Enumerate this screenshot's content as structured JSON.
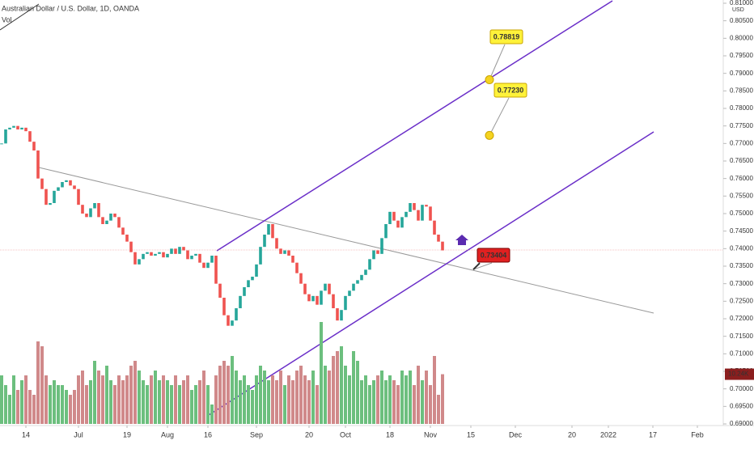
{
  "chart_data": {
    "type": "candlestick",
    "title": "Australian Dollar / U.S. Dollar, 1D, OANDA",
    "volume_title": "Vol",
    "currency": "USD",
    "xlim": [
      0,
      178
    ],
    "xticks": [
      {
        "value": 6,
        "label": "14"
      },
      {
        "value": 19,
        "label": "Jul"
      },
      {
        "value": 31,
        "label": "19"
      },
      {
        "value": 41,
        "label": "Aug"
      },
      {
        "value": 51,
        "label": "16"
      },
      {
        "value": 63,
        "label": "Sep"
      },
      {
        "value": 76,
        "label": "20"
      },
      {
        "value": 85,
        "label": "Oct"
      },
      {
        "value": 96,
        "label": "18"
      },
      {
        "value": 106,
        "label": "Nov"
      },
      {
        "value": 116,
        "label": "15"
      },
      {
        "value": 127,
        "label": "Dec"
      },
      {
        "value": 141,
        "label": "20"
      },
      {
        "value": 150,
        "label": "2022"
      },
      {
        "value": 161,
        "label": "17"
      },
      {
        "value": 172,
        "label": "Feb"
      }
    ],
    "ylim": [
      0.69,
      0.81
    ],
    "yticks": [
      {
        "value": 0.69,
        "label": "0.69000"
      },
      {
        "value": 0.695,
        "label": "0.69500"
      },
      {
        "value": 0.7,
        "label": "0.70000"
      },
      {
        "value": 0.705,
        "label": "0.70500"
      },
      {
        "value": 0.71,
        "label": "0.71000"
      },
      {
        "value": 0.715,
        "label": "0.71500"
      },
      {
        "value": 0.72,
        "label": "0.72000"
      },
      {
        "value": 0.725,
        "label": "0.72500"
      },
      {
        "value": 0.73,
        "label": "0.73000"
      },
      {
        "value": 0.735,
        "label": "0.73500"
      },
      {
        "value": 0.74,
        "label": "0.74000"
      },
      {
        "value": 0.745,
        "label": "0.74500"
      },
      {
        "value": 0.75,
        "label": "0.75000"
      },
      {
        "value": 0.755,
        "label": "0.75500"
      },
      {
        "value": 0.76,
        "label": "0.76000"
      },
      {
        "value": 0.765,
        "label": "0.76500"
      },
      {
        "value": 0.77,
        "label": "0.77000"
      },
      {
        "value": 0.775,
        "label": "0.77500"
      },
      {
        "value": 0.78,
        "label": "0.78000"
      },
      {
        "value": 0.785,
        "label": "0.78500"
      },
      {
        "value": 0.79,
        "label": "0.79000"
      },
      {
        "value": 0.795,
        "label": "0.79500"
      },
      {
        "value": 0.8,
        "label": "0.80000"
      },
      {
        "value": 0.805,
        "label": "0.80500"
      },
      {
        "value": 0.81,
        "label": "0.81000"
      }
    ],
    "up_color": "#6cbf7e",
    "down_color": "#d0898a",
    "series": [
      {
        "name": "Close",
        "values": [
          0.77,
          0.774,
          0.7745,
          0.775,
          0.774,
          0.7745,
          0.7735,
          0.7705,
          0.768,
          0.76,
          0.757,
          0.7525,
          0.753,
          0.7565,
          0.7575,
          0.759,
          0.7595,
          0.758,
          0.757,
          0.7525,
          0.75,
          0.749,
          0.7515,
          0.753,
          0.749,
          0.747,
          0.748,
          0.75,
          0.749,
          0.746,
          0.744,
          0.742,
          0.739,
          0.7355,
          0.737,
          0.7385,
          0.739,
          0.738,
          0.7385,
          0.739,
          0.7375,
          0.7385,
          0.74,
          0.7385,
          0.7405,
          0.7395,
          0.737,
          0.738,
          0.7385,
          0.736,
          0.7345,
          0.736,
          0.738,
          0.73,
          0.726,
          0.721,
          0.718,
          0.7195,
          0.723,
          0.7265,
          0.729,
          0.731,
          0.732,
          0.7355,
          0.7405,
          0.744,
          0.747,
          0.743,
          0.74,
          0.7385,
          0.7395,
          0.738,
          0.736,
          0.733,
          0.73,
          0.727,
          0.725,
          0.7265,
          0.724,
          0.728,
          0.73,
          0.727,
          0.723,
          0.7195,
          0.7225,
          0.7265,
          0.728,
          0.73,
          0.731,
          0.7325,
          0.734,
          0.737,
          0.7395,
          0.7385,
          0.743,
          0.747,
          0.7505,
          0.748,
          0.746,
          0.749,
          0.7505,
          0.753,
          0.751,
          0.748,
          0.7525,
          0.752,
          0.748,
          0.744,
          0.742,
          0.7395
        ]
      }
    ],
    "volume": {
      "values": [
        10,
        8,
        6,
        10,
        7,
        9,
        10,
        7,
        6,
        17,
        16,
        10,
        8,
        9,
        8,
        8,
        7,
        6,
        7,
        10,
        11,
        8,
        9,
        13,
        11,
        10,
        12,
        9,
        8,
        10,
        9,
        10,
        12,
        13,
        11,
        9,
        8,
        10,
        11,
        9,
        10,
        9,
        8,
        10,
        8,
        9,
        10,
        7,
        8,
        9,
        11,
        8,
        4,
        10,
        12,
        13,
        12,
        14,
        11,
        9,
        10,
        8,
        7,
        10,
        12,
        11,
        9,
        10,
        9,
        11,
        8,
        10,
        9,
        11,
        12,
        10,
        9,
        11,
        8,
        21,
        12,
        11,
        14,
        15,
        16,
        12,
        10,
        15,
        13,
        9,
        10,
        8,
        9,
        10,
        11,
        9,
        10,
        9,
        8,
        11,
        10,
        11,
        8,
        12,
        9,
        11,
        8,
        14,
        6,
        10.24
      ],
      "value_labels": {
        "109": "10.24K"
      }
    },
    "annotations": [
      {
        "value": 0.78819,
        "label": "0.78819"
      },
      {
        "value": 0.7723,
        "label": "0.77230"
      },
      {
        "value": 0.73404,
        "label": "0.73404"
      }
    ]
  }
}
